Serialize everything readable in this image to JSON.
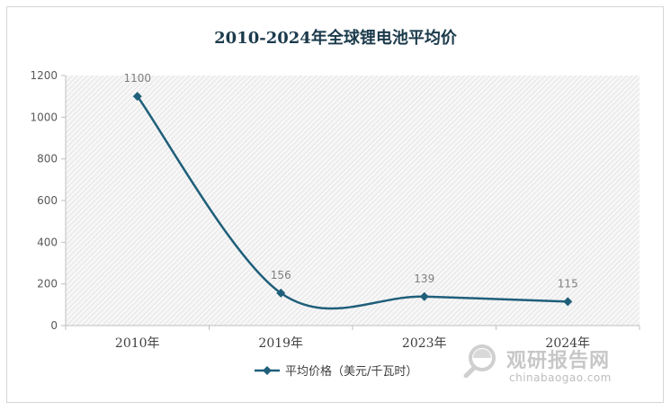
{
  "chart_data": {
    "type": "line",
    "title": "2010-2024年全球锂电池平均价",
    "categories": [
      "2010年",
      "2019年",
      "2023年",
      "2024年"
    ],
    "series": [
      {
        "name": "平均价格（美元/千瓦时）",
        "values": [
          1100,
          156,
          139,
          115
        ],
        "color": "#1f5f7a"
      }
    ],
    "data_labels": [
      "1100",
      "156",
      "139",
      "115"
    ],
    "y_ticks": [
      "0",
      "200",
      "400",
      "600",
      "800",
      "1000",
      "1200"
    ],
    "ylim": [
      0,
      1200
    ],
    "xlabel": "",
    "ylabel": "",
    "grid": false,
    "legend_position": "bottom",
    "plot_background": "hatched-gray"
  },
  "watermark": {
    "name": "观研报告网",
    "url": "chinabaogao.com",
    "icon": "magnifier-logo-icon"
  }
}
